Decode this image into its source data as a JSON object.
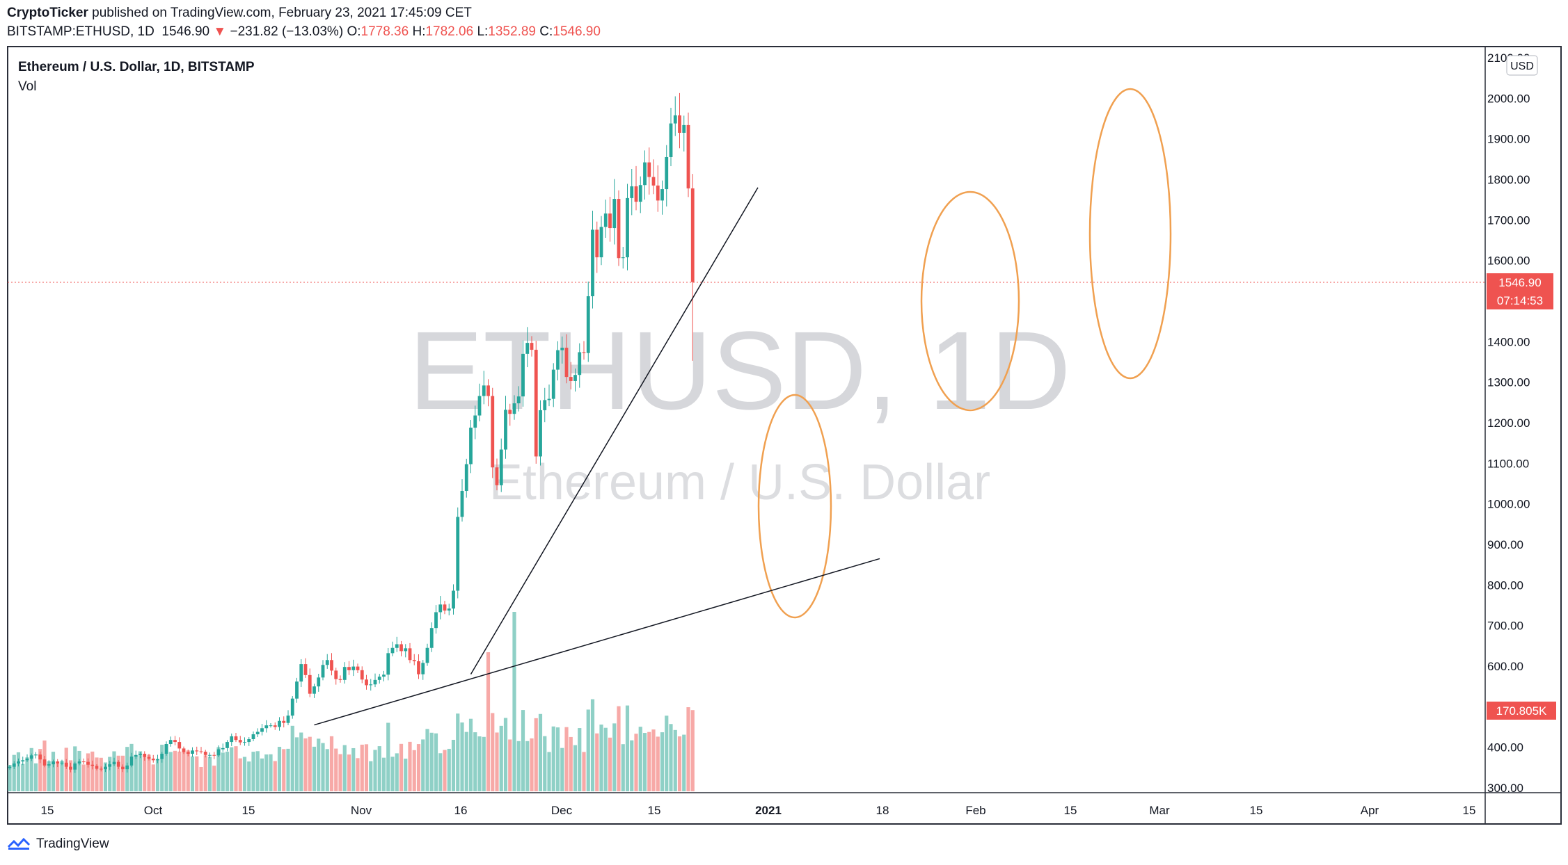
{
  "header": {
    "publisher": "CryptoTicker",
    "published_text": "published on TradingView.com, February 23, 2021 17:45:09 CET",
    "symbol_line": "BITSTAMP:ETHUSD, 1D",
    "last_price": "1546.90",
    "change": "−231.82 (−13.03%)",
    "open_label": "O:",
    "open": "1778.36",
    "high_label": "H:",
    "high": "1782.06",
    "low_label": "L:",
    "low": "1352.89",
    "close_label": "C:",
    "close": "1546.90"
  },
  "legend": {
    "symbol_title": "Ethereum / U.S. Dollar, 1D, BITSTAMP",
    "volume_label": "Vol"
  },
  "watermark": {
    "big": "ETHUSD, 1D",
    "sub": "Ethereum / U.S. Dollar"
  },
  "footer": {
    "brand": "TradingView"
  },
  "chart_data": {
    "type": "candlestick",
    "currency": "USD",
    "price_axis_ticks": [
      "2100.00",
      "2000.00",
      "1900.00",
      "1800.00",
      "1700.00",
      "1600.00",
      "1500.00",
      "1400.00",
      "1300.00",
      "1200.00",
      "1100.00",
      "1000.00",
      "900.00",
      "800.00",
      "700.00",
      "600.00",
      "500.00",
      "400.00",
      "300.00"
    ],
    "price_range": [
      290,
      2110
    ],
    "time_axis_labels": [
      "15",
      "Oct",
      "15",
      "Nov",
      "16",
      "Dec",
      "15",
      "2021",
      "18",
      "Feb",
      "15",
      "Mar",
      "15",
      "Apr",
      "15"
    ],
    "last_price_label": "1546.90",
    "countdown_label": "07:14:53",
    "volume_label": "170.805K",
    "colors": {
      "up": "#26a69a",
      "down": "#ef5350",
      "vol_up": "#8fd0c6",
      "vol_down": "#f7a9a7",
      "annotation": "#f0a050",
      "trendline": "#131722"
    },
    "start_date": "2020-09-08",
    "close": [
      352,
      360,
      365,
      368,
      372,
      380,
      382,
      370,
      355,
      358,
      365,
      360,
      362,
      352,
      345,
      360,
      365,
      364,
      357,
      354,
      347,
      346,
      352,
      358,
      364,
      352,
      346,
      355,
      377,
      381,
      384,
      376,
      372,
      368,
      371,
      384,
      408,
      418,
      413,
      397,
      388,
      384,
      392,
      390,
      389,
      381,
      381,
      380,
      395,
      398,
      413,
      427,
      418,
      412,
      413,
      420,
      432,
      438,
      447,
      454,
      454,
      450,
      465,
      460,
      478,
      520,
      562,
      605,
      578,
      532,
      550,
      572,
      603,
      615,
      589,
      568,
      566,
      598,
      590,
      599,
      590,
      567,
      553,
      555,
      566,
      574,
      579,
      632,
      645,
      654,
      637,
      644,
      615,
      612,
      580,
      608,
      645,
      694,
      733,
      752,
      737,
      742,
      786,
      968,
      1032,
      1098,
      1188,
      1218,
      1266,
      1292,
      1266,
      1090,
      1046,
      1134,
      1232,
      1222,
      1248,
      1265,
      1370,
      1397,
      1380,
      1117,
      1231,
      1256,
      1259,
      1331,
      1379,
      1385,
      1313,
      1303,
      1318,
      1374,
      1372,
      1512,
      1676,
      1608,
      1683,
      1716,
      1680,
      1752,
      1606,
      1608,
      1754,
      1783,
      1745,
      1786,
      1842,
      1806,
      1785,
      1748,
      1776,
      1855,
      1938,
      1958,
      1915,
      1934,
      1778,
      1547
    ],
    "annotations": [
      {
        "type": "ellipse",
        "label": "",
        "around": "early January rally"
      },
      {
        "type": "ellipse",
        "label": "",
        "around": "early February rally"
      },
      {
        "type": "ellipse",
        "label": "",
        "around": "February 22-23 drop"
      },
      {
        "type": "trendline",
        "from": {
          "date": "2020-11-17",
          "price": 455
        },
        "to": {
          "date": "2021-03-27",
          "price": 865
        }
      },
      {
        "type": "trendline",
        "from": {
          "date": "2020-12-23",
          "price": 580
        },
        "to": {
          "date": "2021-02-27",
          "price": 1780
        }
      }
    ]
  }
}
